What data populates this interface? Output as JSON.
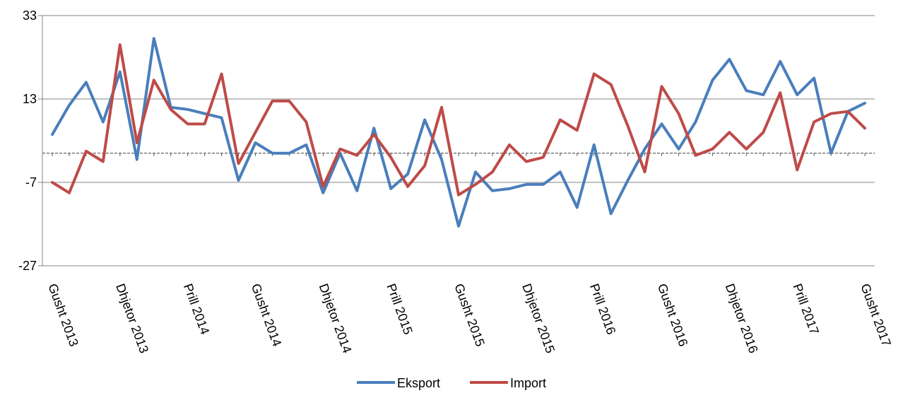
{
  "chart_data": {
    "type": "line",
    "title": "",
    "xlabel": "",
    "ylabel": "",
    "ylim": [
      -27,
      33
    ],
    "yticks": [
      33,
      13,
      -7,
      -27
    ],
    "x_tick_labels": [
      {
        "index": 0,
        "label": "Gusht 2013"
      },
      {
        "index": 4,
        "label": "Dhjetor 2013"
      },
      {
        "index": 8,
        "label": "Prill 2014"
      },
      {
        "index": 12,
        "label": "Gusht 2014"
      },
      {
        "index": 16,
        "label": "Dhjetor 2014"
      },
      {
        "index": 20,
        "label": "Prill 2015"
      },
      {
        "index": 24,
        "label": "Gusht 2015"
      },
      {
        "index": 28,
        "label": "Dhjetor 2015"
      },
      {
        "index": 32,
        "label": "Prill 2016"
      },
      {
        "index": 36,
        "label": "Gusht 2016"
      },
      {
        "index": 40,
        "label": "Dhjetor 2016"
      },
      {
        "index": 44,
        "label": "Prill 2017"
      },
      {
        "index": 48,
        "label": "Gusht 2017"
      }
    ],
    "zero_line": 0,
    "grid": true,
    "legend_position": "bottom",
    "series": [
      {
        "name": "Eksport",
        "color": "#4a7ebb",
        "values": [
          4.5,
          11.5,
          17,
          7.5,
          19.5,
          -1.5,
          27.5,
          11,
          10.5,
          9.5,
          8.5,
          -6.5,
          2.5,
          0,
          0,
          2,
          -9.5,
          0,
          -9,
          6,
          -8.5,
          -5,
          8,
          -1.5,
          -17.5,
          -4.5,
          -9,
          -8.5,
          -7.5,
          -7.5,
          -4.5,
          -13,
          2,
          -14.5,
          -6.5,
          1,
          7,
          1,
          7.5,
          17.5,
          22.5,
          15,
          14,
          22,
          14,
          18,
          0,
          10,
          12
        ]
      },
      {
        "name": "Import",
        "color": "#be4b48",
        "values": [
          -7,
          -9.5,
          0.5,
          -2,
          26,
          2.5,
          17.5,
          10.5,
          7,
          7,
          19,
          -2.5,
          5,
          12.5,
          12.5,
          7.5,
          -8,
          1,
          -0.5,
          4.5,
          -1,
          -8,
          -3,
          11,
          -10,
          -7.5,
          -4.5,
          2,
          -2,
          -1,
          8,
          5.5,
          19,
          16.5,
          6.5,
          -4.5,
          16,
          9.5,
          -0.5,
          1,
          5,
          1,
          5,
          14.5,
          -4,
          7.5,
          9.5,
          10,
          6
        ]
      }
    ]
  }
}
